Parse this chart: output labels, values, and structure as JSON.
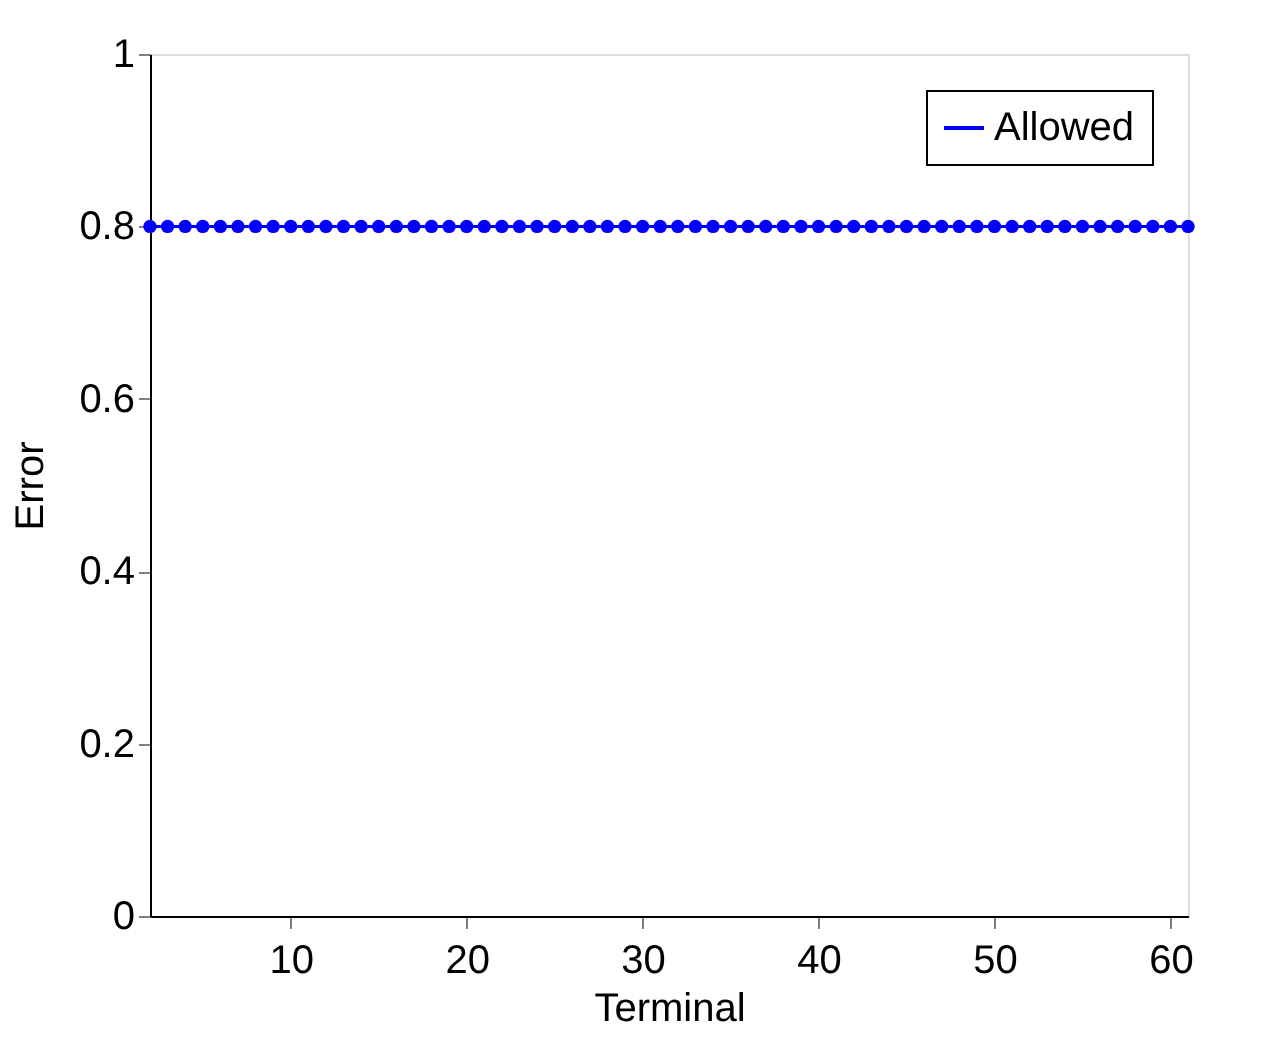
{
  "chart_data": {
    "type": "line",
    "xlabel": "Terminal",
    "ylabel": "Error",
    "x": [
      2,
      3,
      4,
      5,
      6,
      7,
      8,
      9,
      10,
      11,
      12,
      13,
      14,
      15,
      16,
      17,
      18,
      19,
      20,
      21,
      22,
      23,
      24,
      25,
      26,
      27,
      28,
      29,
      30,
      31,
      32,
      33,
      34,
      35,
      36,
      37,
      38,
      39,
      40,
      41,
      42,
      43,
      44,
      45,
      46,
      47,
      48,
      49,
      50,
      51,
      52,
      53,
      54,
      55,
      56,
      57,
      58,
      59,
      60,
      61
    ],
    "series": [
      {
        "name": "Allowed",
        "color": "#0000ff",
        "values": [
          0.8,
          0.8,
          0.8,
          0.8,
          0.8,
          0.8,
          0.8,
          0.8,
          0.8,
          0.8,
          0.8,
          0.8,
          0.8,
          0.8,
          0.8,
          0.8,
          0.8,
          0.8,
          0.8,
          0.8,
          0.8,
          0.8,
          0.8,
          0.8,
          0.8,
          0.8,
          0.8,
          0.8,
          0.8,
          0.8,
          0.8,
          0.8,
          0.8,
          0.8,
          0.8,
          0.8,
          0.8,
          0.8,
          0.8,
          0.8,
          0.8,
          0.8,
          0.8,
          0.8,
          0.8,
          0.8,
          0.8,
          0.8,
          0.8,
          0.8,
          0.8,
          0.8,
          0.8,
          0.8,
          0.8,
          0.8,
          0.8,
          0.8,
          0.8,
          0.8
        ]
      }
    ],
    "xlim": [
      2,
      61
    ],
    "xticks": [
      10,
      20,
      30,
      40,
      50,
      60
    ],
    "ylim": [
      0,
      1
    ],
    "yticks": [
      0,
      0.2,
      0.4,
      0.6,
      0.8,
      1
    ],
    "marker": "circle",
    "line_style": "solid",
    "legend": "top right",
    "grid": false
  }
}
